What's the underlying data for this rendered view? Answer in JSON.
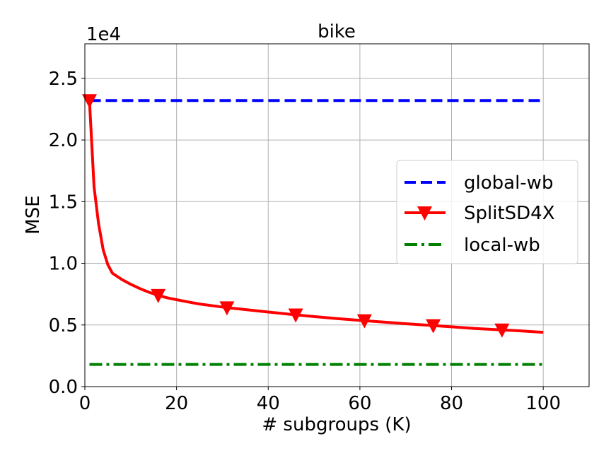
{
  "chart_data": {
    "type": "line",
    "title": "bike",
    "xlabel": "# subgroups (K)",
    "ylabel": "MSE",
    "y_offset_label": "1e4",
    "xlim": [
      0,
      110
    ],
    "ylim": [
      0,
      2.78
    ],
    "xticks": [
      0,
      20,
      40,
      60,
      80,
      100
    ],
    "xtick_labels": [
      "0",
      "20",
      "40",
      "60",
      "80",
      "100"
    ],
    "yticks": [
      0.0,
      0.5,
      1.0,
      1.5,
      2.0,
      2.5
    ],
    "ytick_labels": [
      "0.0",
      "0.5",
      "1.0",
      "1.5",
      "2.0",
      "2.5"
    ],
    "grid": true,
    "legend_position": "center-right",
    "series": [
      {
        "name": "global-wb",
        "color": "#0000ff",
        "style": "dashed",
        "x": [
          1,
          100
        ],
        "y": [
          2.32,
          2.32
        ]
      },
      {
        "name": "SplitSD4X",
        "color": "#ff0000",
        "style": "solid",
        "marker": "triangle-down",
        "x": [
          1,
          2,
          3,
          4,
          5,
          6,
          7,
          8,
          10,
          12,
          14,
          16,
          18,
          20,
          22,
          25,
          28,
          31,
          35,
          40,
          46,
          50,
          55,
          61,
          65,
          70,
          76,
          80,
          85,
          91,
          95,
          100
        ],
        "y": [
          2.32,
          1.62,
          1.32,
          1.11,
          0.99,
          0.92,
          0.895,
          0.87,
          0.83,
          0.795,
          0.765,
          0.74,
          0.72,
          0.705,
          0.69,
          0.67,
          0.655,
          0.64,
          0.625,
          0.605,
          0.582,
          0.568,
          0.552,
          0.535,
          0.524,
          0.51,
          0.495,
          0.485,
          0.472,
          0.46,
          0.452,
          0.44
        ],
        "marker_x": [
          1,
          16,
          31,
          46,
          61,
          76,
          91
        ]
      },
      {
        "name": "local-wb",
        "color": "#008000",
        "style": "dashdot",
        "x": [
          1,
          100
        ],
        "y": [
          0.18,
          0.18
        ]
      }
    ]
  }
}
